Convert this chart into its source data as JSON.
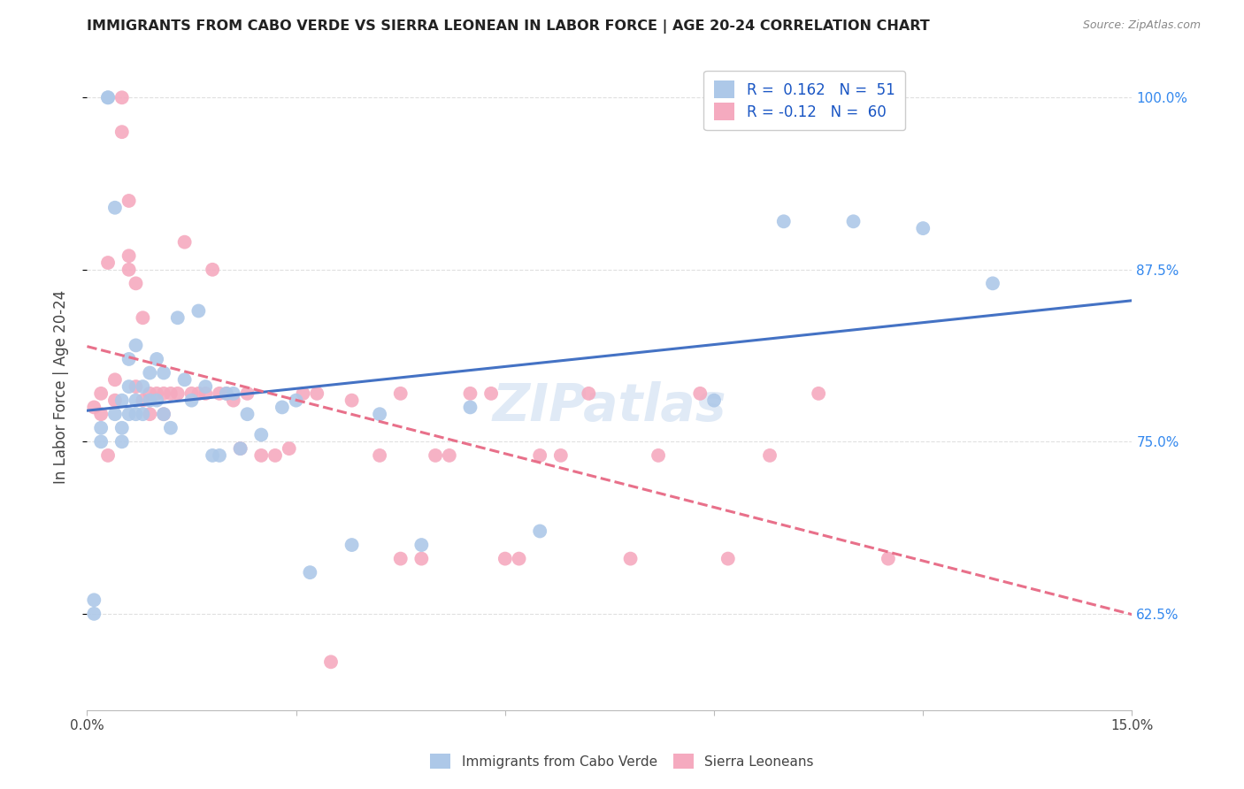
{
  "title": "IMMIGRANTS FROM CABO VERDE VS SIERRA LEONEAN IN LABOR FORCE | AGE 20-24 CORRELATION CHART",
  "source": "Source: ZipAtlas.com",
  "ylabel": "In Labor Force | Age 20-24",
  "xlim": [
    0.0,
    0.15
  ],
  "ylim": [
    0.555,
    1.025
  ],
  "yticks": [
    0.625,
    0.75,
    0.875,
    1.0
  ],
  "right_yticklabels": [
    "62.5%",
    "75.0%",
    "87.5%",
    "100.0%"
  ],
  "cabo_verde_R": 0.162,
  "cabo_verde_N": 51,
  "sierra_leone_R": -0.12,
  "sierra_leone_N": 60,
  "cabo_verde_color": "#adc8e8",
  "sierra_leone_color": "#f5aabf",
  "cabo_verde_line_color": "#4472c4",
  "sierra_leone_line_color": "#e8708a",
  "legend_R_color": "#1a56c4",
  "background_color": "#ffffff",
  "grid_color": "#e0e0e0",
  "cabo_verde_points_x": [
    0.001,
    0.001,
    0.002,
    0.002,
    0.003,
    0.003,
    0.004,
    0.004,
    0.005,
    0.005,
    0.005,
    0.006,
    0.006,
    0.006,
    0.007,
    0.007,
    0.007,
    0.008,
    0.008,
    0.009,
    0.009,
    0.01,
    0.01,
    0.011,
    0.011,
    0.012,
    0.013,
    0.014,
    0.015,
    0.016,
    0.017,
    0.018,
    0.019,
    0.02,
    0.021,
    0.022,
    0.023,
    0.025,
    0.028,
    0.03,
    0.032,
    0.038,
    0.042,
    0.048,
    0.055,
    0.065,
    0.09,
    0.1,
    0.11,
    0.12,
    0.13
  ],
  "cabo_verde_points_y": [
    0.635,
    0.625,
    0.76,
    0.75,
    1.0,
    1.0,
    0.92,
    0.77,
    0.78,
    0.76,
    0.75,
    0.81,
    0.79,
    0.77,
    0.82,
    0.78,
    0.77,
    0.79,
    0.77,
    0.8,
    0.78,
    0.81,
    0.78,
    0.8,
    0.77,
    0.76,
    0.84,
    0.795,
    0.78,
    0.845,
    0.79,
    0.74,
    0.74,
    0.785,
    0.785,
    0.745,
    0.77,
    0.755,
    0.775,
    0.78,
    0.655,
    0.675,
    0.77,
    0.675,
    0.775,
    0.685,
    0.78,
    0.91,
    0.91,
    0.905,
    0.865
  ],
  "sierra_leone_points_x": [
    0.001,
    0.002,
    0.002,
    0.003,
    0.003,
    0.004,
    0.004,
    0.005,
    0.005,
    0.006,
    0.006,
    0.006,
    0.007,
    0.007,
    0.008,
    0.008,
    0.009,
    0.009,
    0.01,
    0.011,
    0.011,
    0.012,
    0.013,
    0.014,
    0.015,
    0.016,
    0.017,
    0.018,
    0.019,
    0.02,
    0.021,
    0.022,
    0.023,
    0.025,
    0.027,
    0.029,
    0.031,
    0.033,
    0.035,
    0.038,
    0.042,
    0.045,
    0.05,
    0.055,
    0.06,
    0.065,
    0.045,
    0.048,
    0.052,
    0.058,
    0.062,
    0.068,
    0.072,
    0.078,
    0.082,
    0.088,
    0.092,
    0.098,
    0.105,
    0.115
  ],
  "sierra_leone_points_y": [
    0.775,
    0.785,
    0.77,
    0.74,
    0.88,
    0.795,
    0.78,
    1.0,
    0.975,
    0.925,
    0.885,
    0.875,
    0.865,
    0.79,
    0.84,
    0.78,
    0.785,
    0.77,
    0.785,
    0.785,
    0.77,
    0.785,
    0.785,
    0.895,
    0.785,
    0.785,
    0.785,
    0.875,
    0.785,
    0.785,
    0.78,
    0.745,
    0.785,
    0.74,
    0.74,
    0.745,
    0.785,
    0.785,
    0.59,
    0.78,
    0.74,
    0.665,
    0.74,
    0.785,
    0.665,
    0.74,
    0.785,
    0.665,
    0.74,
    0.785,
    0.665,
    0.74,
    0.785,
    0.665,
    0.74,
    0.785,
    0.665,
    0.74,
    0.785,
    0.665
  ]
}
